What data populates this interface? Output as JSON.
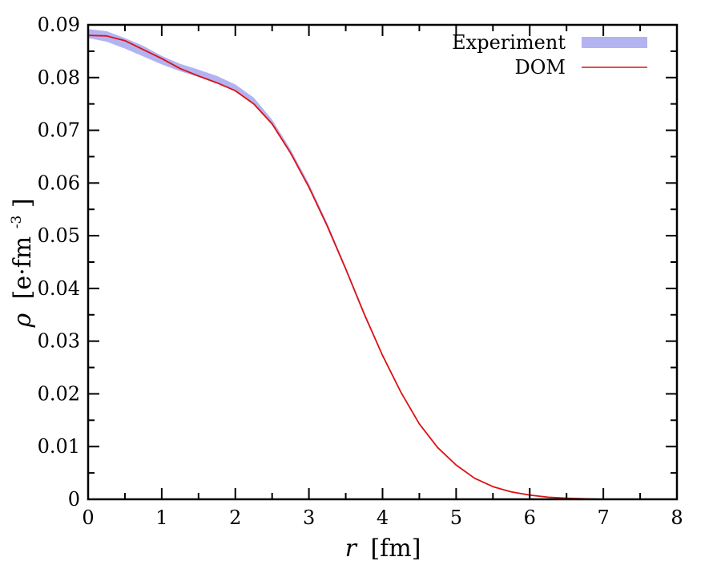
{
  "chart_data": {
    "type": "line",
    "title": "",
    "xlabel_symbol": "r",
    "xlabel_unit": "[fm]",
    "ylabel_symbol": "ρ",
    "ylabel_unit": "[e·fm",
    "ylabel_exp": "-3",
    "ylabel_close": "]",
    "xlim": [
      0,
      8
    ],
    "ylim": [
      0,
      0.09
    ],
    "x_ticks": [
      0,
      1,
      2,
      3,
      4,
      5,
      6,
      7,
      8
    ],
    "x_tick_labels": [
      "0",
      "1",
      "2",
      "3",
      "4",
      "5",
      "6",
      "7",
      "8"
    ],
    "y_ticks": [
      0,
      0.01,
      0.02,
      0.03,
      0.04,
      0.05,
      0.06,
      0.07,
      0.08,
      0.09
    ],
    "y_tick_labels": [
      "0",
      "0.01",
      "0.02",
      "0.03",
      "0.04",
      "0.05",
      "0.06",
      "0.07",
      "0.08",
      "0.09"
    ],
    "legend_position": "top-right",
    "series": [
      {
        "name": "Experiment",
        "kind": "band",
        "color": "#b3b3f2",
        "x": [
          0,
          0.25,
          0.5,
          0.75,
          1.0,
          1.25,
          1.5,
          1.75,
          2.0,
          2.25,
          2.5,
          2.75,
          3.0,
          3.25,
          3.5,
          3.75,
          4.0
        ],
        "lower": [
          0.0875,
          0.0868,
          0.0855,
          0.084,
          0.0825,
          0.0812,
          0.0801,
          0.079,
          0.0775,
          0.075,
          0.071,
          0.0655,
          0.059,
          0.0515,
          0.0433,
          0.0348,
          0.027
        ],
        "upper": [
          0.0892,
          0.0888,
          0.0875,
          0.086,
          0.0841,
          0.0826,
          0.0815,
          0.0803,
          0.0787,
          0.0762,
          0.072,
          0.0664,
          0.0599,
          0.0524,
          0.0441,
          0.0355,
          0.0275
        ]
      },
      {
        "name": "DOM",
        "kind": "line",
        "color": "#dd1111",
        "x": [
          0,
          0.25,
          0.5,
          0.75,
          1.0,
          1.25,
          1.5,
          1.75,
          2.0,
          2.25,
          2.5,
          2.75,
          3.0,
          3.25,
          3.5,
          3.75,
          4.0,
          4.25,
          4.5,
          4.75,
          5.0,
          5.25,
          5.5,
          5.75,
          6.0,
          6.25,
          6.5,
          6.75,
          7.0
        ],
        "y": [
          0.088,
          0.0879,
          0.087,
          0.0853,
          0.0836,
          0.0817,
          0.0803,
          0.079,
          0.0775,
          0.075,
          0.0712,
          0.0657,
          0.0592,
          0.0518,
          0.0437,
          0.0352,
          0.0273,
          0.0203,
          0.0143,
          0.0098,
          0.0065,
          0.004,
          0.0024,
          0.0014,
          0.0008,
          0.0004,
          0.0002,
          0.0001,
          0.0
        ]
      }
    ]
  }
}
